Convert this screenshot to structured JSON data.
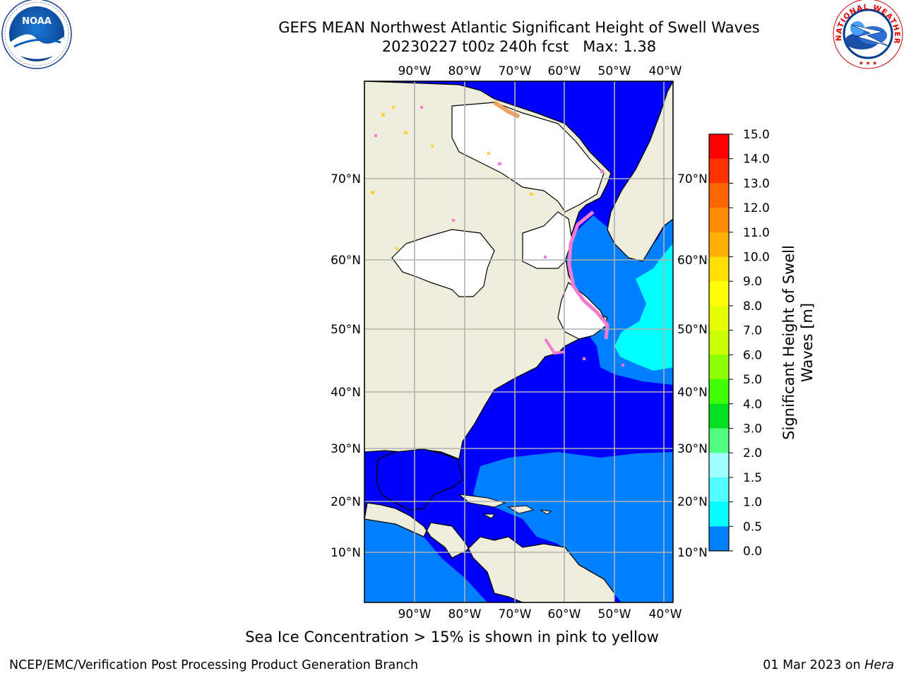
{
  "title": {
    "line1": "GEFS MEAN Northwest Atlantic Significant Height of Swell Waves",
    "line2": "20230227 t00z 240h fcst   Max: 1.38"
  },
  "map": {
    "lon_labels": [
      "90°W",
      "80°W",
      "70°W",
      "60°W",
      "50°W",
      "40°W"
    ],
    "lat_labels": [
      "70°N",
      "60°N",
      "50°N",
      "40°N",
      "30°N",
      "20°N",
      "10°N"
    ],
    "colors": {
      "land": "#efeedc",
      "ice_white": "#ffffff",
      "ice_edge": "#f57ad0",
      "ice_edge_alt": "#f0a060",
      "ice_yellow": "#ffd040",
      "swell_0": "#0000ff",
      "swell_05": "#0080ff",
      "swell_1": "#00ffff",
      "grid": "#b0b0b0"
    }
  },
  "colorbar": {
    "title": "Significant Height of Swell Waves [m]",
    "ticks": [
      "15.0",
      "14.0",
      "13.0",
      "12.0",
      "11.0",
      "10.0",
      "9.0",
      "8.0",
      "7.0",
      "6.0",
      "5.0",
      "4.0",
      "3.0",
      "2.0",
      "1.5",
      "1.0",
      "0.5",
      "0.0"
    ],
    "colors": [
      "#ff0000",
      "#ff3300",
      "#ff6600",
      "#ff8c00",
      "#ffb000",
      "#ffe000",
      "#ffff00",
      "#e6ff00",
      "#c8ff00",
      "#8cff00",
      "#40ff00",
      "#00e020",
      "#50ff80",
      "#a0ffff",
      "#50ffff",
      "#00ffff",
      "#0080ff",
      "#0000ff"
    ]
  },
  "footnote": "Sea Ice Concentration > 15% is shown in pink to yellow",
  "credits": {
    "left": "NCEP/EMC/Verification Post Processing Product Generation Branch",
    "right_date": "01 Mar 2023 on",
    "right_host": "Hera"
  },
  "logos": {
    "noaa_text": "NOAA",
    "nws_text": "NATIONAL WEATHER SERVICE"
  }
}
